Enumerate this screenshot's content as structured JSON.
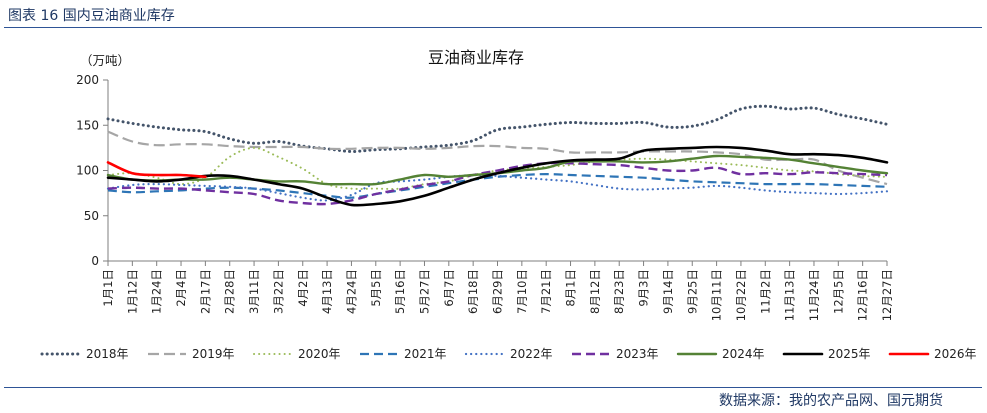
{
  "caption": "图表 16 国内豆油商业库存",
  "source": "数据来源：我的农产品网、国元期货",
  "chart_data": {
    "type": "line",
    "title": "豆油商业库存",
    "ylabel": "（万吨）",
    "ylim": [
      0,
      200
    ],
    "yticks": [
      0,
      50,
      100,
      150,
      200
    ],
    "categories": [
      "1月1日",
      "1月12日",
      "1月24日",
      "2月4日",
      "2月17日",
      "2月28日",
      "3月11日",
      "3月22日",
      "4月2日",
      "4月13日",
      "4月24日",
      "5月5日",
      "5月16日",
      "5月27日",
      "6月7日",
      "6月18日",
      "6月29日",
      "7月10日",
      "7月21日",
      "8月1日",
      "8月12日",
      "8月23日",
      "9月3日",
      "9月14日",
      "9月25日",
      "10月11日",
      "10月22日",
      "11月2日",
      "11月13日",
      "11月24日",
      "12月5日",
      "12月16日",
      "12月27日"
    ],
    "series": [
      {
        "name": "2018年",
        "color": "#44546a",
        "dash": "dot",
        "width": 3,
        "values": [
          157,
          152,
          148,
          145,
          143,
          135,
          130,
          132,
          127,
          124,
          121,
          123,
          124,
          126,
          128,
          133,
          145,
          148,
          151,
          153,
          152,
          152,
          153,
          148,
          149,
          156,
          168,
          171,
          168,
          169,
          162,
          157,
          151
        ]
      },
      {
        "name": "2019年",
        "color": "#a6a6a6",
        "dash": "longdash",
        "width": 2.2,
        "values": [
          143,
          132,
          128,
          129,
          129,
          127,
          126,
          126,
          126,
          124,
          124,
          125,
          125,
          124,
          125,
          127,
          127,
          125,
          124,
          120,
          120,
          120,
          121,
          121,
          121,
          120,
          118,
          112,
          112,
          112,
          100,
          92,
          85
        ]
      },
      {
        "name": "2020年",
        "color": "#9bbb59",
        "dash": "dot",
        "width": 2,
        "values": [
          95,
          97,
          92,
          85,
          92,
          115,
          125,
          115,
          102,
          85,
          80,
          80,
          80,
          85,
          88,
          95,
          100,
          102,
          104,
          106,
          110,
          112,
          113,
          112,
          110,
          108,
          106,
          103,
          100,
          99,
          96,
          94,
          93
        ]
      },
      {
        "name": "2021年",
        "color": "#2e75b6",
        "dash": "dash",
        "width": 2.2,
        "values": [
          78,
          76,
          77,
          78,
          80,
          81,
          80,
          78,
          75,
          72,
          70,
          74,
          78,
          82,
          86,
          90,
          93,
          95,
          96,
          95,
          94,
          93,
          92,
          90,
          88,
          87,
          86,
          85,
          85,
          85,
          84,
          83,
          82
        ]
      },
      {
        "name": "2022年",
        "color": "#4472c4",
        "dash": "dot",
        "width": 2.2,
        "values": [
          80,
          84,
          85,
          84,
          83,
          82,
          80,
          75,
          70,
          67,
          73,
          86,
          88,
          90,
          93,
          95,
          94,
          92,
          90,
          88,
          84,
          80,
          79,
          80,
          81,
          83,
          81,
          78,
          76,
          75,
          74,
          75,
          77
        ]
      },
      {
        "name": "2023年",
        "color": "#7030a0",
        "dash": "dash",
        "width": 2.4,
        "values": [
          80,
          81,
          80,
          80,
          78,
          76,
          74,
          67,
          64,
          63,
          67,
          74,
          79,
          84,
          88,
          95,
          100,
          105,
          108,
          108,
          107,
          106,
          103,
          100,
          100,
          103,
          96,
          97,
          96,
          98,
          97,
          96,
          95
        ]
      },
      {
        "name": "2024年",
        "color": "#548235",
        "dash": "solid",
        "width": 2.4,
        "values": [
          95,
          90,
          89,
          90,
          90,
          92,
          90,
          88,
          88,
          85,
          85,
          85,
          90,
          95,
          93,
          95,
          97,
          100,
          103,
          110,
          110,
          110,
          109,
          110,
          113,
          116,
          115,
          114,
          112,
          108,
          104,
          100,
          97
        ]
      },
      {
        "name": "2025年",
        "color": "#000000",
        "dash": "solid",
        "width": 2.6,
        "values": [
          92,
          90,
          88,
          90,
          94,
          94,
          90,
          85,
          80,
          70,
          62,
          63,
          66,
          72,
          81,
          90,
          97,
          103,
          108,
          111,
          112,
          113,
          122,
          124,
          125,
          126,
          125,
          122,
          118,
          118,
          117,
          114,
          109
        ]
      },
      {
        "name": "2026年",
        "color": "#ff0000",
        "dash": "solid",
        "width": 2.6,
        "values": [
          109,
          97,
          95,
          95,
          93,
          null,
          null,
          null,
          null,
          null,
          null,
          null,
          null,
          null,
          null,
          null,
          null,
          null,
          null,
          null,
          null,
          null,
          null,
          null,
          null,
          null,
          null,
          null,
          null,
          null,
          null,
          null,
          null
        ]
      }
    ]
  }
}
